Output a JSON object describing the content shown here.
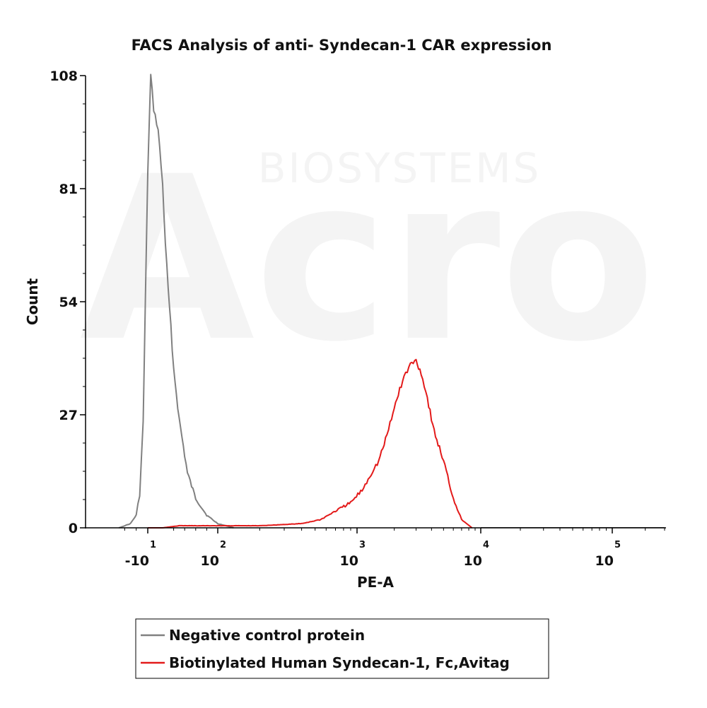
{
  "chart_data": {
    "type": "line",
    "title": "FACS Analysis of anti- Syndecan-1 CAR expression",
    "xlabel": "PE-A",
    "ylabel": "Count",
    "x_scale": "biexponential",
    "y_ticks": [
      0,
      27,
      54,
      81,
      108
    ],
    "ylim": [
      0,
      108
    ],
    "x_ticks": [
      {
        "value": -10,
        "base": "-10",
        "exp": "1"
      },
      {
        "value": 100,
        "base": "10",
        "exp": "2"
      },
      {
        "value": 1000,
        "base": "10",
        "exp": "3"
      },
      {
        "value": 10000,
        "base": "10",
        "exp": "4"
      },
      {
        "value": 100000,
        "base": "10",
        "exp": "5"
      }
    ],
    "legend_position": "bottom",
    "series": [
      {
        "name": "Negative control protein",
        "color": "#808080",
        "x": [
          -35,
          -25,
          -20,
          -17,
          -14,
          -12,
          -10,
          -8,
          -6,
          -3,
          0,
          5,
          10,
          15,
          20,
          30,
          45,
          60,
          80,
          100,
          130
        ],
        "y": [
          0,
          1,
          3,
          8,
          25,
          55,
          85,
          108,
          100,
          95,
          82,
          68,
          57,
          48,
          38,
          26,
          13,
          7,
          3,
          1,
          0
        ]
      },
      {
        "name": "Biotinylated Human Syndecan-1, Fc,Avitag",
        "color": "#e31a1a",
        "x": [
          -10,
          0,
          30,
          100,
          200,
          400,
          550,
          700,
          900,
          1100,
          1300,
          1500,
          1700,
          1900,
          2100,
          2400,
          2700,
          3000,
          3300,
          3700,
          4200,
          5000,
          6000,
          7000,
          8500
        ],
        "y": [
          0,
          0,
          0.5,
          0.5,
          0.5,
          1,
          2,
          4,
          6,
          9,
          13,
          16,
          21,
          26,
          31,
          36,
          39,
          40,
          37,
          31,
          23,
          16,
          7,
          2,
          0
        ]
      }
    ]
  },
  "watermark": {
    "brand": "Acro",
    "subtext": "BIOSYSTEMS"
  }
}
